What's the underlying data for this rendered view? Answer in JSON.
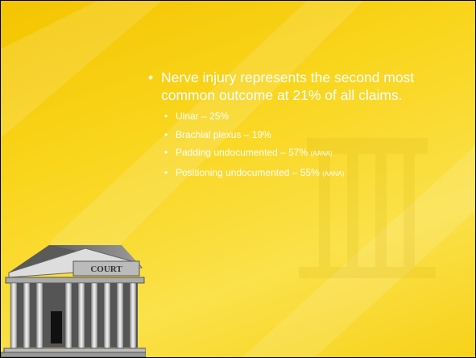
{
  "slide": {
    "bullets": [
      {
        "text": "Nerve injury represents the second most common outcome at 21% of all claims.",
        "sub_bullets": [
          {
            "text": "Ulnar – 25%"
          },
          {
            "text": "Brachial plexus – 19%"
          },
          {
            "text": "Padding undocumented – 57%",
            "note": "(AANA)"
          },
          {
            "text": "Positioning undocumented – 55%",
            "note": "(AANA)"
          }
        ]
      }
    ],
    "icon_label": "COURT"
  }
}
